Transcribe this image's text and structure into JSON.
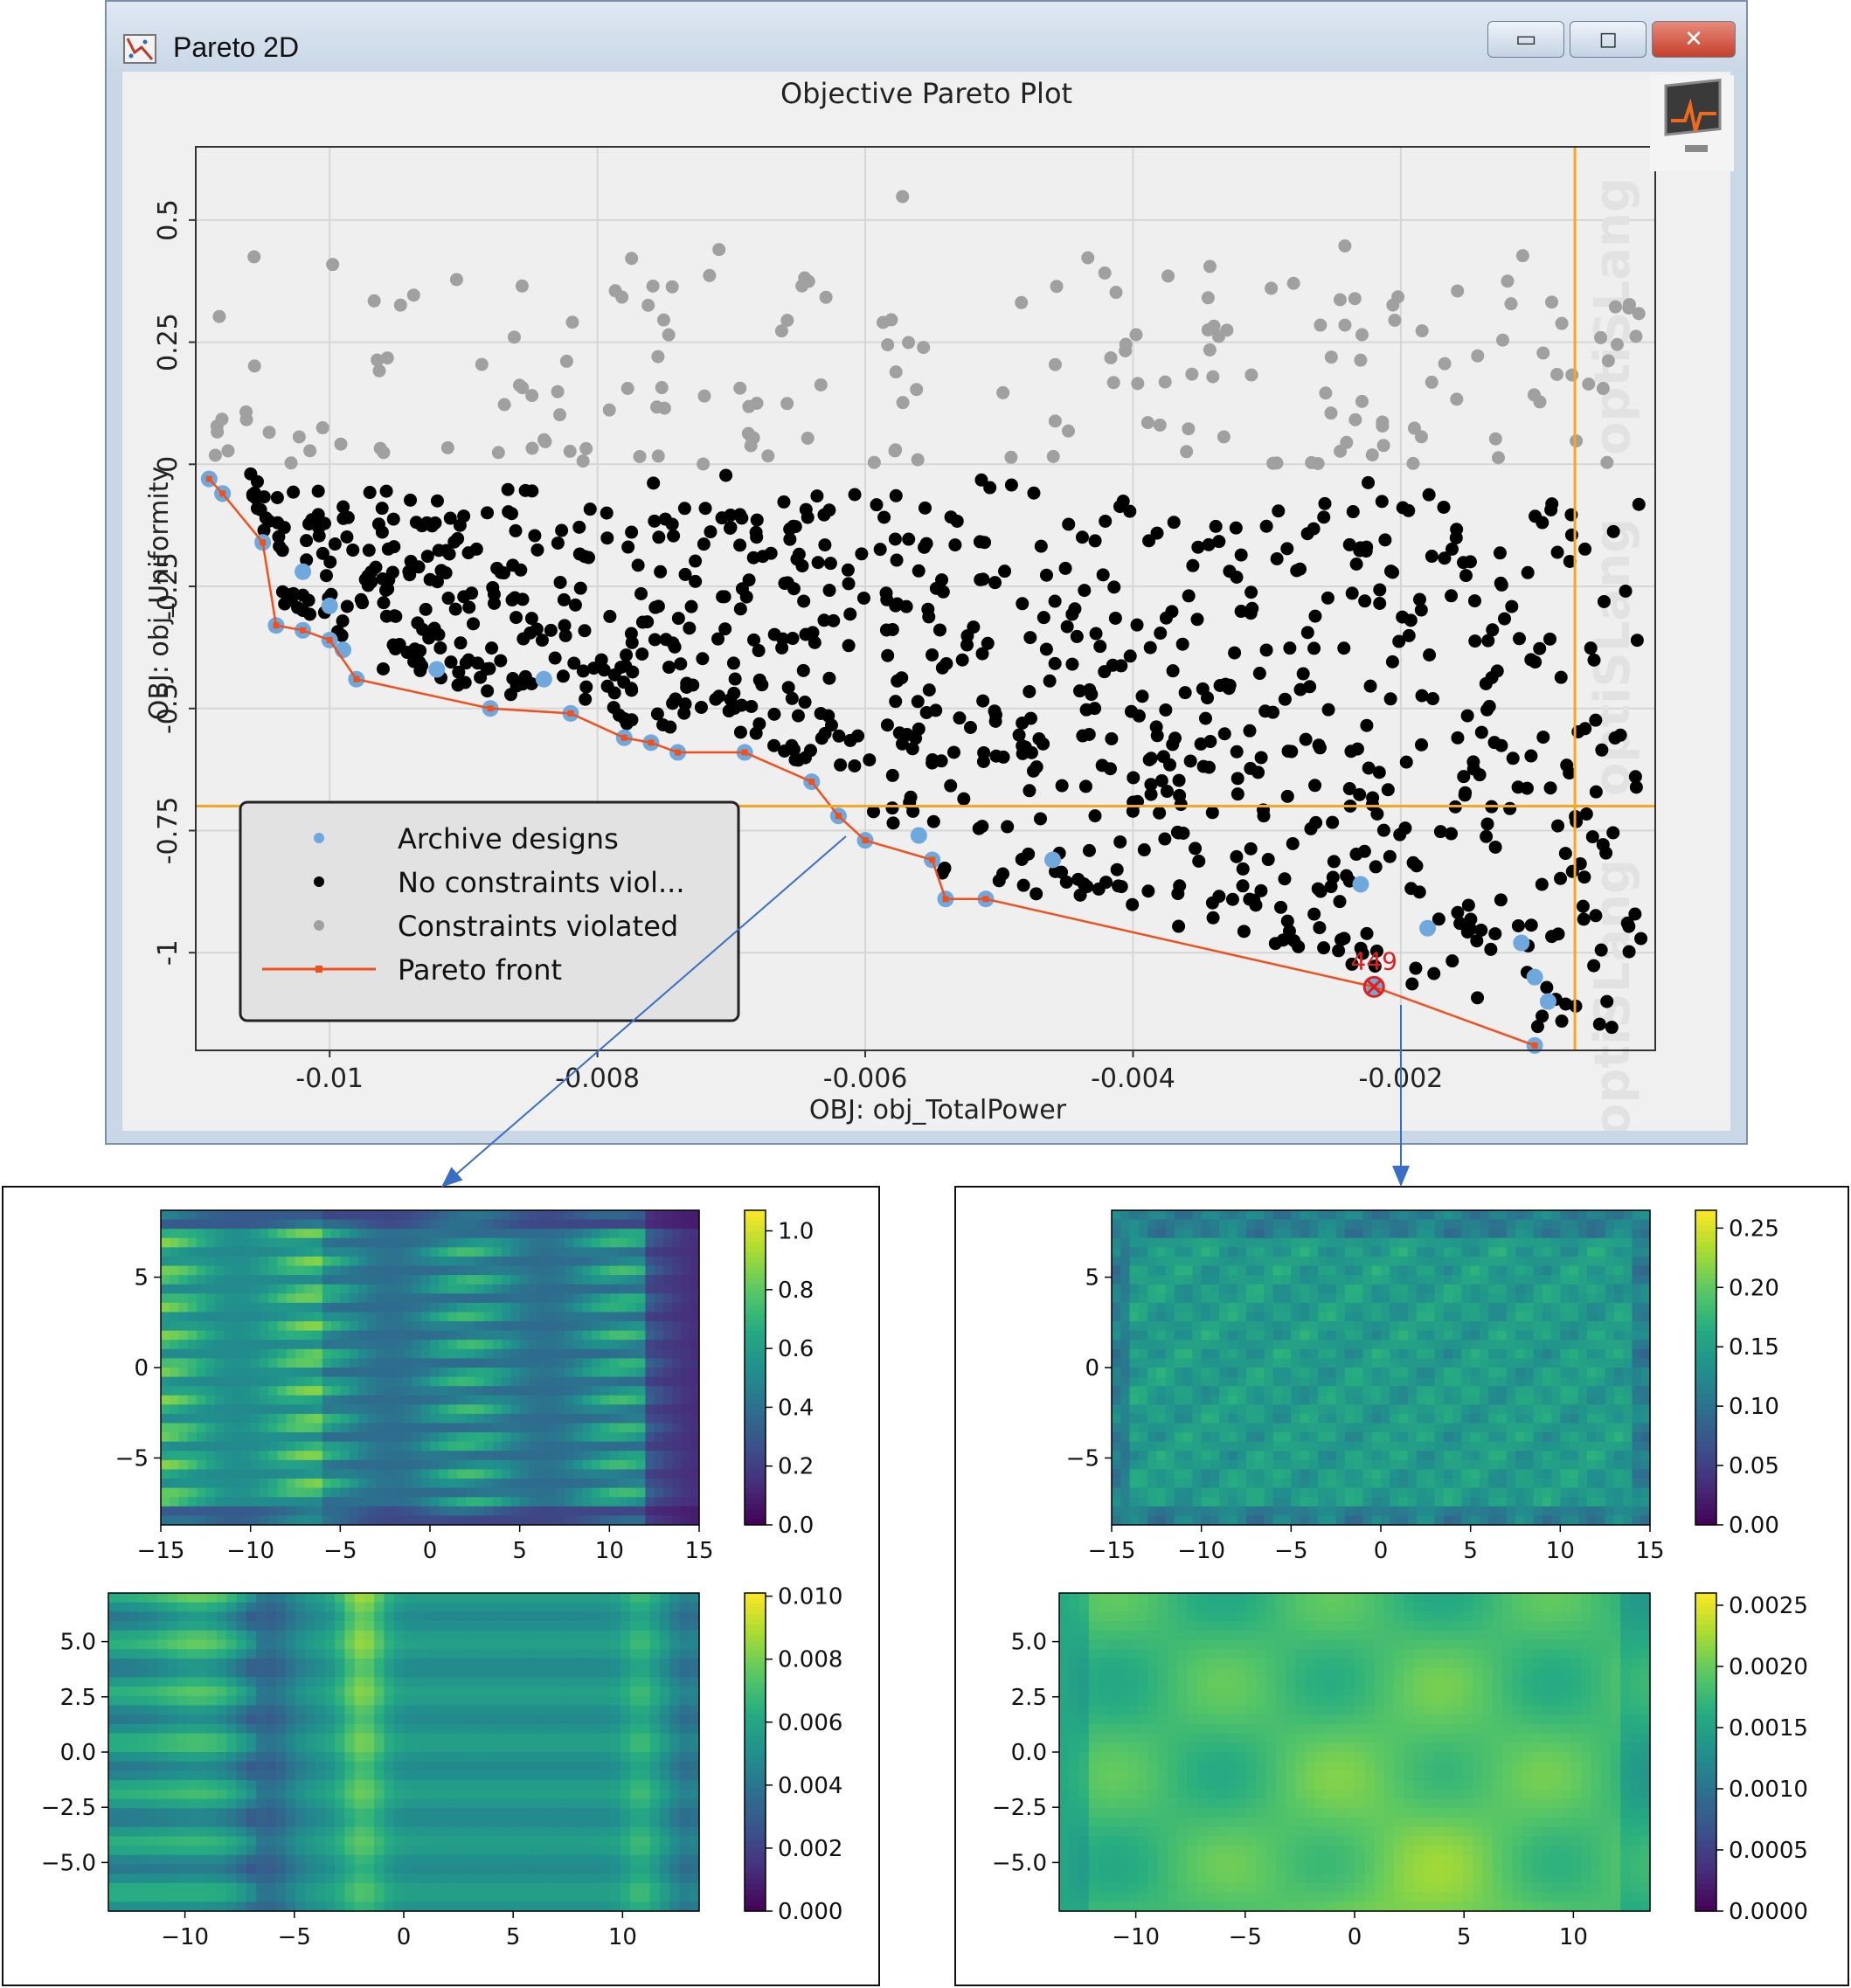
{
  "window": {
    "title": "Pareto 2D",
    "controls": {
      "minimize": "▭",
      "maximize": "◻",
      "close": "✕"
    }
  },
  "pareto": {
    "title": "Objective Pareto Plot",
    "watermark": "optiSLang",
    "legend": {
      "archive": "Archive designs",
      "no_viol": "No constraints viol...",
      "viol": "Constraints violated",
      "front": "Pareto front"
    },
    "selected_label": "449",
    "colors": {
      "archive": "#6fa8dc",
      "no_viol": "#000000",
      "viol": "#a0a0a0",
      "front": "#f0501e",
      "guide": "#f5a623",
      "selected": "#e02020"
    }
  },
  "chart_data": [
    {
      "type": "scatter",
      "title": "Objective Pareto Plot",
      "xlabel": "OBJ: obj_TotalPower",
      "ylabel": "OBJ: obj_Uniformity",
      "xlim": [
        -0.011,
        -0.0001
      ],
      "ylim": [
        -1.2,
        0.65
      ],
      "xticks": [
        "-0.01",
        "-0.008",
        "-0.006",
        "-0.004",
        "-0.002"
      ],
      "yticks": [
        "0.5",
        "0.25",
        "0",
        "-0.25",
        "-0.5",
        "-0.75",
        "-1"
      ],
      "reference_lines": {
        "x": -0.0007,
        "y": -0.7
      },
      "legend_position": "lower-left",
      "series": [
        {
          "name": "Pareto front",
          "x": [
            -0.0109,
            -0.0108,
            -0.0105,
            -0.0104,
            -0.0102,
            -0.01,
            -0.0098,
            -0.0088,
            -0.0082,
            -0.0078,
            -0.0076,
            -0.0074,
            -0.0069,
            -0.0064,
            -0.0062,
            -0.006,
            -0.0055,
            -0.0054,
            -0.0051,
            -0.0022,
            -0.001
          ],
          "y": [
            -0.03,
            -0.06,
            -0.16,
            -0.33,
            -0.34,
            -0.36,
            -0.44,
            -0.5,
            -0.51,
            -0.56,
            -0.57,
            -0.59,
            -0.59,
            -0.65,
            -0.72,
            -0.77,
            -0.81,
            -0.89,
            -0.89,
            -1.07,
            -1.19
          ]
        },
        {
          "name": "Archive designs",
          "x": [
            -0.0108,
            -0.0102,
            -0.01,
            -0.0099,
            -0.0092,
            -0.0084,
            -0.0056,
            -0.0046,
            -0.0023,
            -0.0018,
            -0.0011,
            -0.001,
            -0.0009
          ],
          "y": [
            -0.06,
            -0.22,
            -0.29,
            -0.38,
            -0.42,
            -0.44,
            -0.76,
            -0.81,
            -0.86,
            -0.95,
            -0.98,
            -1.05,
            -1.1
          ]
        },
        {
          "name": "No constraints viol...",
          "note": "dense cloud, x ≈ -0.0108 to -0.0003, y ≈ -1.2 to 0"
        },
        {
          "name": "Constraints violated",
          "note": "sparse cloud, x ≈ -0.0109 to -0.0002, y ≈ 0 to 0.62"
        }
      ],
      "selected_point": {
        "label": "449",
        "x": -0.0022,
        "y": -1.07
      }
    },
    {
      "type": "heatmap",
      "panel": "left-top",
      "xlim": [
        -15,
        15
      ],
      "ylim": [
        -8.7,
        8.7
      ],
      "xticks": [
        "−15",
        "−10",
        "−5",
        "0",
        "5",
        "10",
        "15"
      ],
      "yticks": [
        "5",
        "0",
        "−5"
      ],
      "colorbar": {
        "range": [
          0.0,
          1.07
        ],
        "ticks": [
          "1.0",
          "0.8",
          "0.6",
          "0.4",
          "0.2",
          "0.0"
        ]
      }
    },
    {
      "type": "heatmap",
      "panel": "left-bottom",
      "xlim": [
        -13.5,
        13.5
      ],
      "ylim": [
        -7.2,
        7.2
      ],
      "xticks": [
        "−10",
        "−5",
        "0",
        "5",
        "10"
      ],
      "yticks": [
        "5.0",
        "2.5",
        "0.0",
        "−2.5",
        "−5.0"
      ],
      "colorbar": {
        "range": [
          0.0,
          0.0101
        ],
        "ticks": [
          "0.010",
          "0.008",
          "0.006",
          "0.004",
          "0.002",
          "0.000"
        ]
      }
    },
    {
      "type": "heatmap",
      "panel": "right-top",
      "xlim": [
        -15,
        15
      ],
      "ylim": [
        -8.7,
        8.7
      ],
      "xticks": [
        "−15",
        "−10",
        "−5",
        "0",
        "5",
        "10",
        "15"
      ],
      "yticks": [
        "5",
        "0",
        "−5"
      ],
      "colorbar": {
        "range": [
          0.0,
          0.265
        ],
        "ticks": [
          "0.25",
          "0.20",
          "0.15",
          "0.10",
          "0.05",
          "0.00"
        ]
      }
    },
    {
      "type": "heatmap",
      "panel": "right-bottom",
      "xlim": [
        -13.5,
        13.5
      ],
      "ylim": [
        -7.2,
        7.2
      ],
      "xticks": [
        "−10",
        "−5",
        "0",
        "5",
        "10"
      ],
      "yticks": [
        "5.0",
        "2.5",
        "0.0",
        "−2.5",
        "−5.0"
      ],
      "colorbar": {
        "range": [
          0.0,
          0.0026
        ],
        "ticks": [
          "0.0025",
          "0.0020",
          "0.0015",
          "0.0010",
          "0.0005",
          "0.0000"
        ]
      }
    }
  ]
}
